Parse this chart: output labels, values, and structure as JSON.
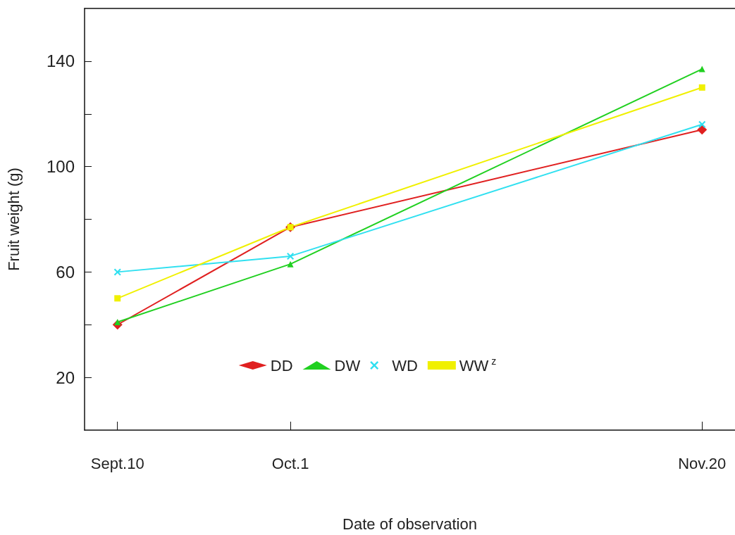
{
  "chart_data": {
    "type": "line",
    "xlabel": "Date of observation",
    "ylabel": "Fruit weight (g)",
    "x": [
      "--09-10",
      "--10-01",
      "--11-20"
    ],
    "xlim": [
      "--09-06",
      "--11-24"
    ],
    "xticks": [
      {
        "value": "--09-10",
        "label": "Sept.10"
      },
      {
        "value": "--10-01",
        "label": "Oct.1"
      },
      {
        "value": "--11-20",
        "label": "Nov.20"
      }
    ],
    "ylim": [
      0,
      160
    ],
    "yticks": [
      20,
      {
        "value": 40,
        "label": null
      },
      60,
      {
        "value": 80,
        "label": null
      },
      100,
      {
        "value": 120,
        "label": null
      },
      140
    ],
    "series": [
      {
        "name": "DD",
        "color": "#e02020",
        "marker": "diamond",
        "values": [
          40,
          77,
          114
        ]
      },
      {
        "name": "DW",
        "color": "#20d020",
        "marker": "triangle",
        "values": [
          41,
          63,
          137
        ]
      },
      {
        "name": "WD",
        "color": "#30e0f0",
        "marker": "cross",
        "values": [
          60,
          66,
          116
        ]
      },
      {
        "name": "WW$^{z}$",
        "color": "#f0f000",
        "marker": "square",
        "values": [
          50,
          77,
          130
        ]
      }
    ],
    "legend": "bottom",
    "grid": false,
    "line_style": "solid"
  }
}
